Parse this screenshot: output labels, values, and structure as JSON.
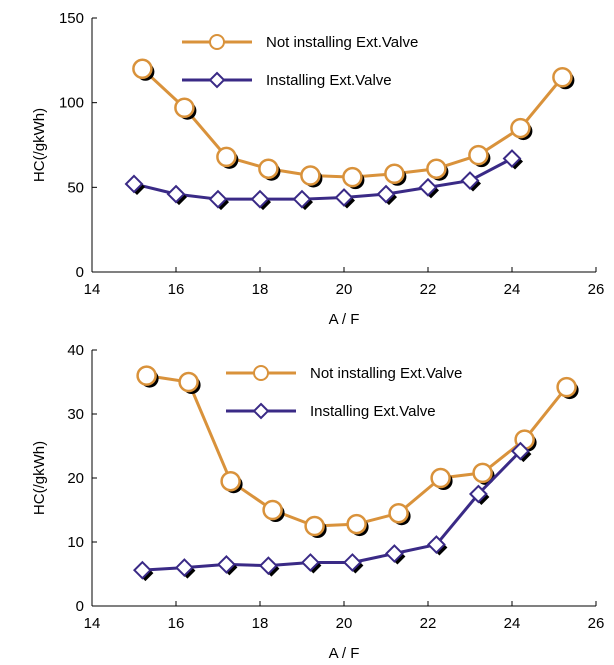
{
  "colors": {
    "not_installing": "#D9923B",
    "installing": "#3A2A86",
    "axis": "#000000",
    "shadow": "#000000"
  },
  "chart_data": [
    {
      "type": "line",
      "title": "",
      "xlabel": "A / F",
      "ylabel": "HC(/gkWh)",
      "xlim": [
        14,
        26
      ],
      "ylim": [
        0,
        150
      ],
      "xticks": [
        14,
        16,
        18,
        20,
        22,
        24,
        26
      ],
      "yticks": [
        0,
        50,
        100,
        150
      ],
      "legend_position": "top-center",
      "grid": false,
      "series": [
        {
          "name": "Not installing Ext.Valve",
          "marker": "circle",
          "color_key": "not_installing",
          "x": [
            15.2,
            16.2,
            17.2,
            18.2,
            19.2,
            20.2,
            21.2,
            22.2,
            23.2,
            24.2,
            25.2
          ],
          "y": [
            120,
            97,
            68,
            61,
            57,
            56,
            58,
            61,
            69,
            85,
            115
          ]
        },
        {
          "name": "Installing Ext.Valve",
          "marker": "diamond",
          "color_key": "installing",
          "x": [
            15.0,
            16.0,
            17.0,
            18.0,
            19.0,
            20.0,
            21.0,
            22.0,
            23.0,
            24.0
          ],
          "y": [
            52,
            46,
            43,
            43,
            43,
            44,
            46,
            50,
            54,
            67
          ]
        }
      ]
    },
    {
      "type": "line",
      "title": "",
      "xlabel": "A / F",
      "ylabel": "HC(/gkWh)",
      "xlim": [
        14,
        26
      ],
      "ylim": [
        0,
        40
      ],
      "xticks": [
        14,
        16,
        18,
        20,
        22,
        24,
        26
      ],
      "yticks": [
        0,
        10,
        20,
        30,
        40
      ],
      "legend_position": "top-center",
      "grid": false,
      "series": [
        {
          "name": "Not installing Ext.Valve",
          "marker": "circle",
          "color_key": "not_installing",
          "x": [
            15.3,
            16.3,
            17.3,
            18.3,
            19.3,
            20.3,
            21.3,
            22.3,
            23.3,
            24.3,
            25.3
          ],
          "y": [
            36,
            35,
            19.5,
            15,
            12.5,
            12.8,
            14.5,
            20,
            20.8,
            26,
            34.2
          ]
        },
        {
          "name": "Installing Ext.Valve",
          "marker": "diamond",
          "color_key": "installing",
          "x": [
            15.2,
            16.2,
            17.2,
            18.2,
            19.2,
            20.2,
            21.2,
            22.2,
            23.2,
            24.2
          ],
          "y": [
            5.6,
            6.0,
            6.5,
            6.3,
            6.8,
            6.8,
            8.2,
            9.6,
            17.5,
            24.2
          ]
        }
      ]
    }
  ]
}
